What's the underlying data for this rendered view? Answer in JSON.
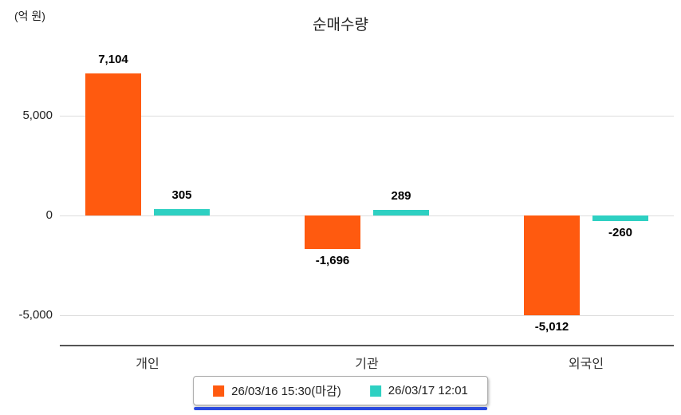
{
  "chart_data": {
    "type": "bar",
    "title": "순매수량",
    "unit_label": "(억 원)",
    "categories": [
      "개인",
      "기관",
      "외국인"
    ],
    "series": [
      {
        "name": "26/03/16 15:30(마감)",
        "color": "#ff5a0f",
        "values": [
          7104,
          -1696,
          -5012
        ],
        "labels": [
          "7,104",
          "-1,696",
          "-5,012"
        ]
      },
      {
        "name": "26/03/17 12:01",
        "color": "#2ed0c2",
        "values": [
          305,
          289,
          -260
        ],
        "labels": [
          "305",
          "289",
          "-260"
        ]
      }
    ],
    "y_ticks": [
      {
        "value": 5000,
        "label": "5,000"
      },
      {
        "value": 0,
        "label": "0"
      },
      {
        "value": -5000,
        "label": "-5,000"
      }
    ],
    "ylim": [
      -5800,
      7800
    ],
    "grid": true,
    "legend_position": "bottom"
  }
}
